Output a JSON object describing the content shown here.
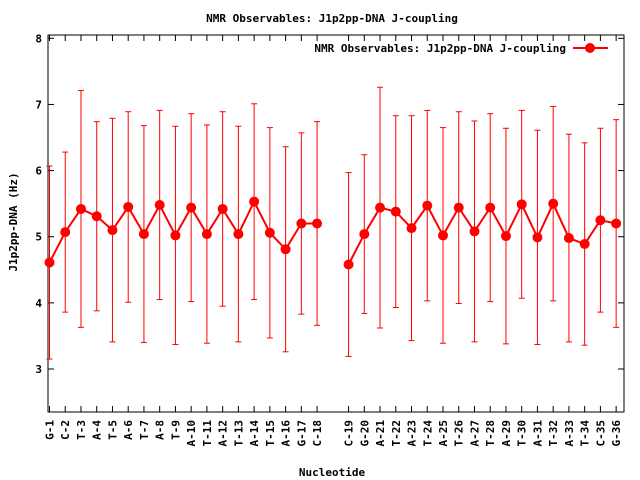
{
  "chart_data": {
    "type": "line",
    "title": "NMR Observables: J1p2pp-DNA J-coupling",
    "xlabel": "Nucleotide",
    "ylabel": "J1p2pp-DNA (Hz)",
    "ylim": [
      2.35,
      8.05
    ],
    "yticks": [
      "3",
      "4",
      "5",
      "6",
      "7",
      "8"
    ],
    "legend": {
      "position": "top-right",
      "label": "NMR Observables: J1p2pp-DNA J-coupling"
    },
    "colors": {
      "series": "#ff0000",
      "error": "#ff0000"
    },
    "grid": false,
    "series": [
      {
        "name": "NMR Observables: J1p2pp-DNA J-coupling",
        "segments": [
          {
            "categories": [
              "G-1",
              "C-2",
              "T-3",
              "A-4",
              "T-5",
              "A-6",
              "T-7",
              "A-8",
              "T-9",
              "A-10",
              "T-11",
              "A-12",
              "T-13",
              "A-14",
              "T-15",
              "A-16",
              "G-17",
              "C-18"
            ],
            "values": [
              4.61,
              5.07,
              5.42,
              5.31,
              5.1,
              5.45,
              5.04,
              5.48,
              5.02,
              5.44,
              5.04,
              5.42,
              5.04,
              5.53,
              5.06,
              4.81,
              5.2,
              5.2
            ],
            "err": [
              1.46,
              1.21,
              1.79,
              1.43,
              1.69,
              1.44,
              1.64,
              1.43,
              1.65,
              1.42,
              1.65,
              1.47,
              1.63,
              1.48,
              1.59,
              1.55,
              1.37,
              1.54
            ]
          },
          {
            "categories": [
              "C-19",
              "G-20",
              "A-21",
              "T-22",
              "A-23",
              "T-24",
              "A-25",
              "T-26",
              "A-27",
              "T-28",
              "A-29",
              "T-30",
              "A-31",
              "T-32",
              "A-33",
              "T-34",
              "C-35",
              "G-36"
            ],
            "values": [
              4.58,
              5.04,
              5.44,
              5.38,
              5.13,
              5.47,
              5.02,
              5.44,
              5.08,
              5.44,
              5.01,
              5.49,
              4.99,
              5.5,
              4.98,
              4.89,
              5.25,
              5.2
            ],
            "err": [
              1.39,
              1.2,
              1.82,
              1.45,
              1.7,
              1.44,
              1.63,
              1.45,
              1.67,
              1.42,
              1.63,
              1.42,
              1.62,
              1.47,
              1.57,
              1.53,
              1.39,
              1.57
            ]
          }
        ]
      }
    ]
  }
}
